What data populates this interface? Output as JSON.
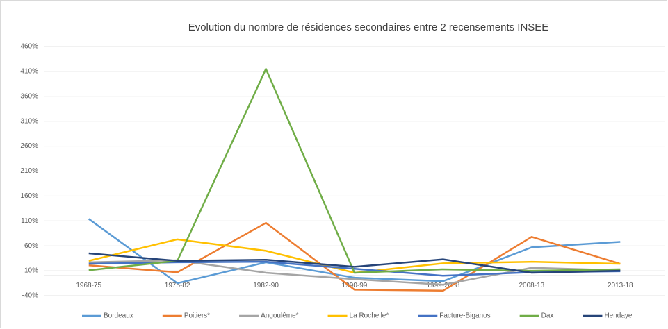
{
  "chart_data": {
    "type": "line",
    "title": "Evolution du nombre de résidences secondaires entre 2 recensements INSEE",
    "categories": [
      "1968-75",
      "1975-82",
      "1982-90",
      "1990-99",
      "1999-2008",
      "2008-13",
      "2013-18"
    ],
    "series": [
      {
        "name": "Bordeaux",
        "color": "#5b9bd5",
        "values": [
          114,
          -15,
          27,
          -4,
          -11,
          57,
          68
        ]
      },
      {
        "name": "Poitiers*",
        "color": "#ed7d31",
        "values": [
          21,
          7,
          106,
          -28,
          -30,
          78,
          24
        ]
      },
      {
        "name": "Angoulême*",
        "color": "#a5a5a5",
        "values": [
          27,
          31,
          6,
          -7,
          -18,
          16,
          11
        ]
      },
      {
        "name": "La Rochelle*",
        "color": "#ffc000",
        "values": [
          30,
          73,
          50,
          6,
          25,
          28,
          24
        ]
      },
      {
        "name": "Facture-Biganos",
        "color": "#4472c4",
        "values": [
          24,
          27,
          28,
          14,
          0,
          7,
          9
        ]
      },
      {
        "name": "Dax",
        "color": "#70ad47",
        "values": [
          11,
          30,
          415,
          6,
          13,
          10,
          13
        ]
      },
      {
        "name": "Hendaye",
        "color": "#264478",
        "values": [
          45,
          30,
          32,
          18,
          33,
          6,
          10
        ]
      }
    ],
    "ylim": [
      -40,
      460
    ],
    "yticks": [
      {
        "value": -40,
        "label": "-40%"
      },
      {
        "value": 10,
        "label": "10%"
      },
      {
        "value": 60,
        "label": "60%"
      },
      {
        "value": 110,
        "label": "110%"
      },
      {
        "value": 160,
        "label": "160%"
      },
      {
        "value": 210,
        "label": "210%"
      },
      {
        "value": 260,
        "label": "260%"
      },
      {
        "value": 310,
        "label": "310%"
      },
      {
        "value": 360,
        "label": "360%"
      },
      {
        "value": 410,
        "label": "410%"
      },
      {
        "value": 460,
        "label": "460%"
      }
    ],
    "grid": true,
    "legend": "bottom"
  }
}
